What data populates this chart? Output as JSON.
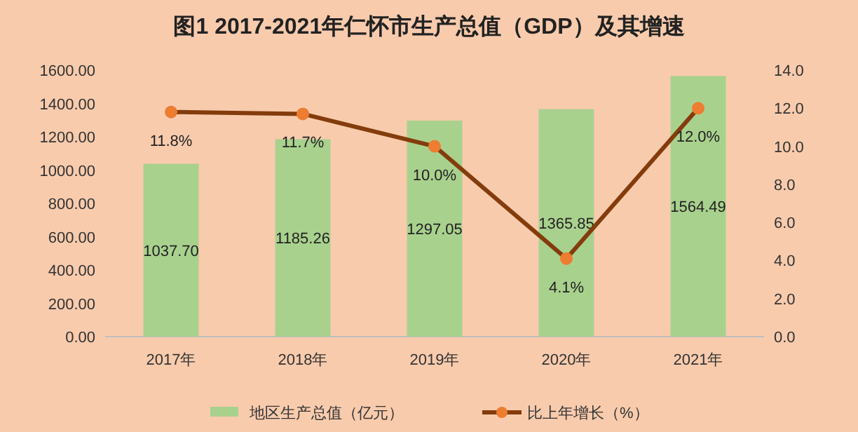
{
  "chart_data": {
    "type": "bar",
    "title": "图1   2017-2021年仁怀市生产总值（GDP）及其增速",
    "categories": [
      "2017年",
      "2018年",
      "2019年",
      "2020年",
      "2021年"
    ],
    "series": [
      {
        "name": "地区生产总值（亿元）",
        "color": "#a9d18e",
        "values": [
          1037.7,
          1185.26,
          1297.05,
          1365.85,
          1564.49
        ],
        "value_labels": [
          "1037.70",
          "1185.26",
          "1297.05",
          "1365.85",
          "1564.49"
        ]
      },
      {
        "name": "比上年增长（%）",
        "type": "line",
        "axis": "y2",
        "color": "#843c0c",
        "marker": "circle",
        "values": [
          11.8,
          11.7,
          10.0,
          4.1,
          12.0
        ],
        "value_labels": [
          "11.8%",
          "11.7%",
          "10.0%",
          "4.1%",
          "12.0%"
        ]
      }
    ],
    "ylim": [
      0,
      1600
    ],
    "yticks": [
      {
        "value": 0,
        "label": "0.00"
      },
      {
        "value": 200,
        "label": "200.00"
      },
      {
        "value": 400,
        "label": "400.00"
      },
      {
        "value": 600,
        "label": "600.00"
      },
      {
        "value": 800,
        "label": "800.00"
      },
      {
        "value": 1000,
        "label": "1000.00"
      },
      {
        "value": 1200,
        "label": "1200.00"
      },
      {
        "value": 1400,
        "label": "1400.00"
      },
      {
        "value": 1600,
        "label": "1600.00"
      }
    ],
    "y2lim": [
      0,
      14
    ],
    "y2ticks": [
      {
        "value": 0,
        "label": "0.0"
      },
      {
        "value": 2,
        "label": "2.0"
      },
      {
        "value": 4,
        "label": "4.0"
      },
      {
        "value": 6,
        "label": "6.0"
      },
      {
        "value": 8,
        "label": "8.0"
      },
      {
        "value": 10,
        "label": "10.0"
      },
      {
        "value": 12,
        "label": "12.0"
      },
      {
        "value": 14,
        "label": "14.0"
      }
    ],
    "legend": "bottom",
    "grid": false
  }
}
